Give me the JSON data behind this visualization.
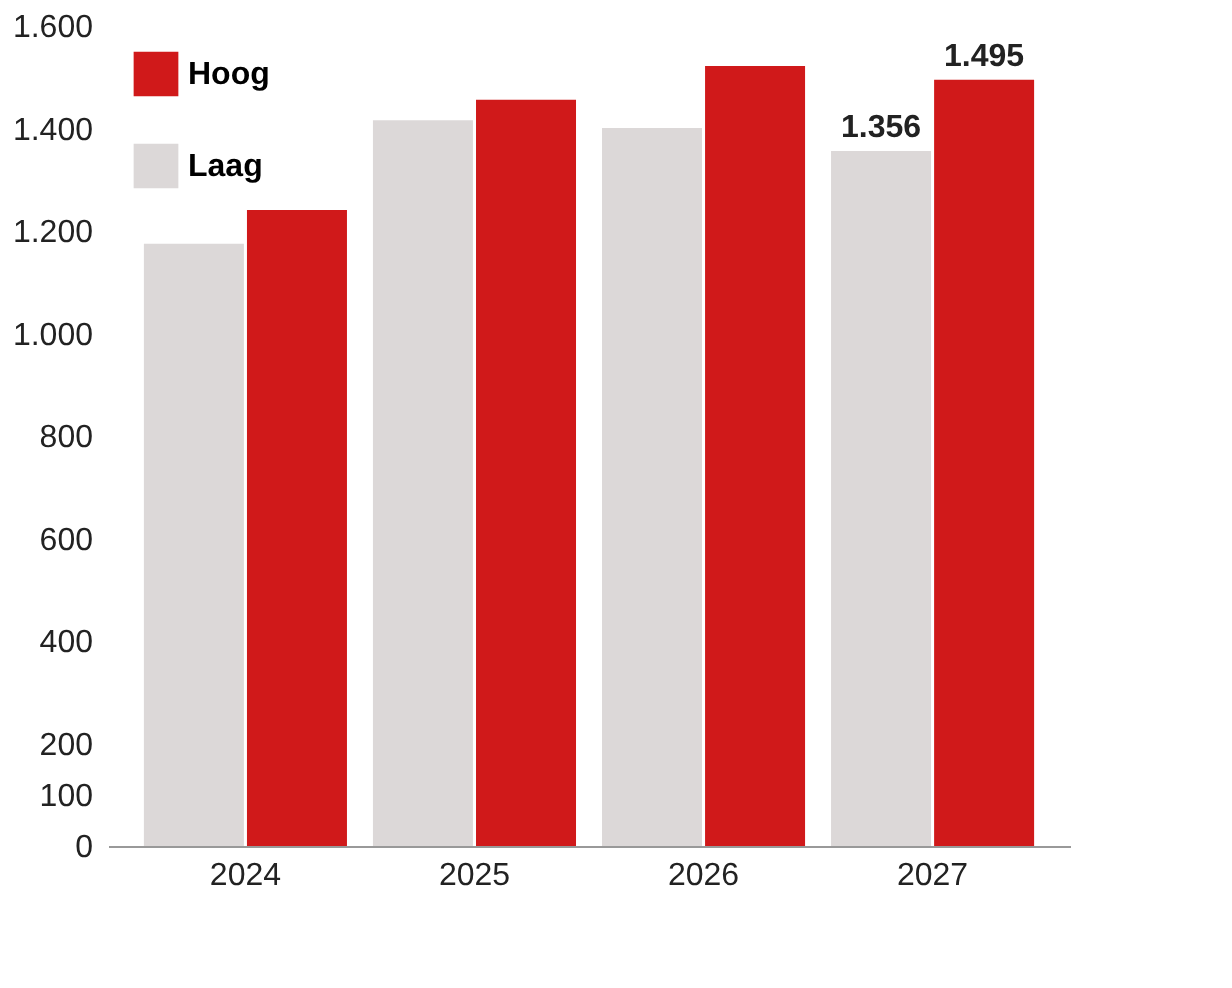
{
  "chart_data": {
    "type": "bar",
    "categories": [
      "2024",
      "2025",
      "2026",
      "2027"
    ],
    "series": [
      {
        "name": "Laag",
        "color": "#dcd8d8",
        "values": [
          1175,
          1416,
          1401,
          1356
        ],
        "value_labels": [
          null,
          null,
          null,
          "1.356"
        ]
      },
      {
        "name": "Hoog",
        "color": "#d0191a",
        "values": [
          1241,
          1456,
          1522,
          1495
        ],
        "value_labels": [
          null,
          null,
          null,
          "1.495"
        ]
      }
    ],
    "ylim": [
      0,
      1600
    ],
    "yticks": [
      0,
      100,
      200,
      400,
      600,
      800,
      {
        "value": 1000,
        "label": "1.000"
      },
      {
        "value": 1200,
        "label": "1.200"
      },
      {
        "value": 1400,
        "label": "1.400"
      },
      {
        "value": 1600,
        "label": "1.600"
      }
    ],
    "grid": false,
    "legend": "top left"
  }
}
